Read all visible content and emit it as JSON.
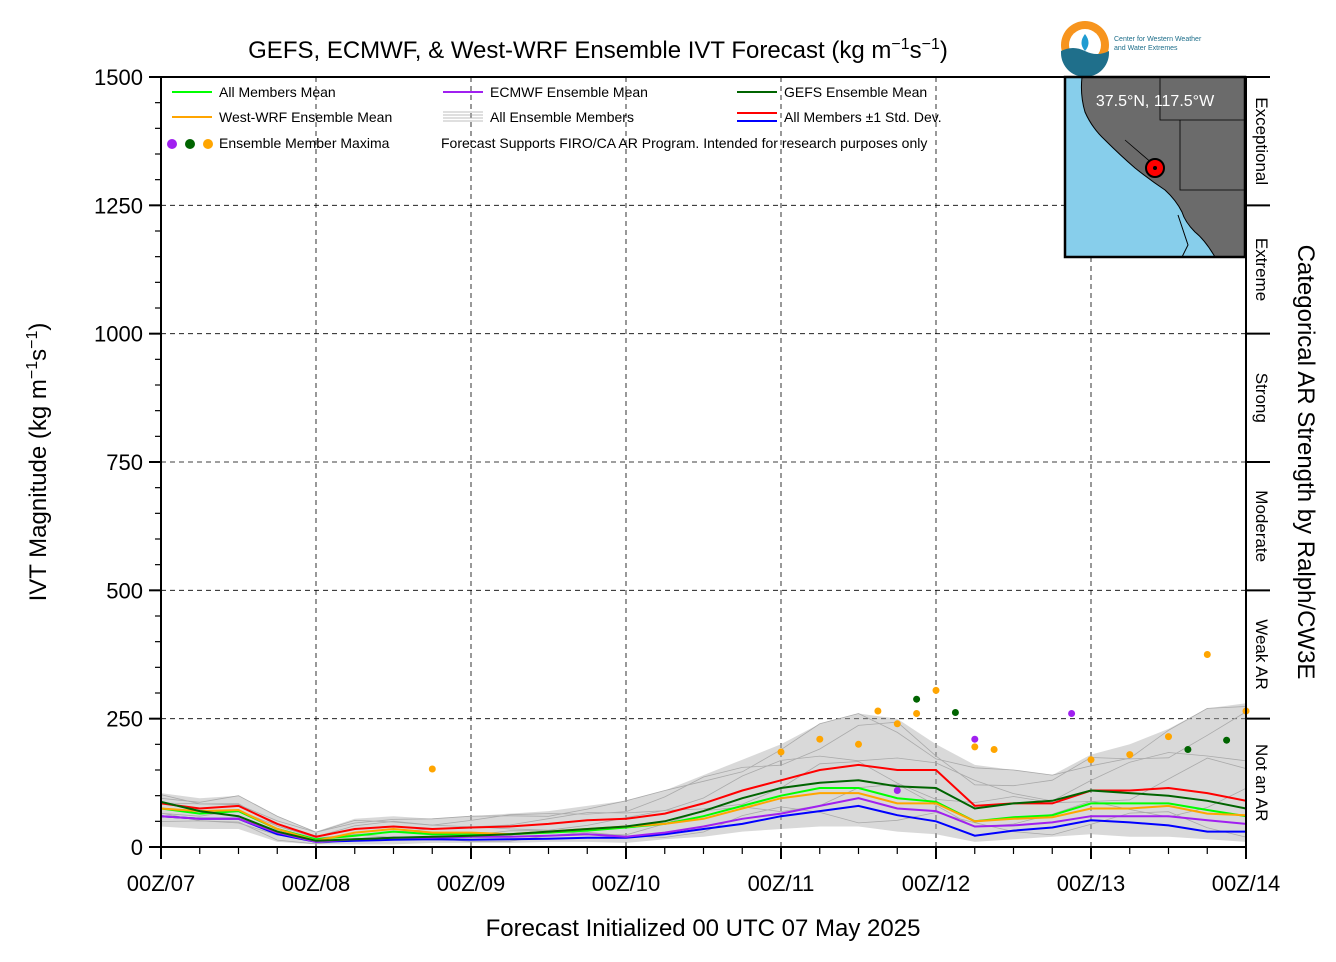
{
  "chart_data": {
    "type": "line",
    "title_main": "GEFS, ECMWF, & West-WRF Ensemble IVT Forecast (kg m",
    "title_exp1": "−1",
    "title_mid": "s",
    "title_exp2": "−1",
    "title_end": ")",
    "ylabel_main": "IVT Magnitude (kg m",
    "ylabel_exp1": "−1",
    "ylabel_mid": "s",
    "ylabel_exp2": "−1",
    "ylabel_end": ")",
    "xlabel": "Forecast Initialized 00 UTC 07 May 2025",
    "right_label": "Categorical AR Strength by Ralph/CW3E",
    "ylim": [
      0,
      1500
    ],
    "xlim": [
      0,
      168
    ],
    "yticks": [
      0,
      250,
      500,
      750,
      1000,
      1250,
      1500
    ],
    "ytick_labels": [
      "0",
      "250",
      "500",
      "750",
      "1000",
      "1250",
      "1500"
    ],
    "xticks": [
      0,
      24,
      48,
      72,
      96,
      120,
      144,
      168
    ],
    "xtick_labels": [
      "00Z/07",
      "00Z/08",
      "00Z/09",
      "00Z/10",
      "00Z/11",
      "00Z/12",
      "00Z/13",
      "00Z/14"
    ],
    "grid": true,
    "categories": [
      {
        "label": "Not an AR",
        "range": [
          0,
          250
        ]
      },
      {
        "label": "Weak AR",
        "range": [
          250,
          500
        ]
      },
      {
        "label": "Moderate",
        "range": [
          500,
          750
        ]
      },
      {
        "label": "Strong",
        "range": [
          750,
          1000
        ]
      },
      {
        "label": "Extreme",
        "range": [
          1000,
          1250
        ]
      },
      {
        "label": "Exceptional",
        "range": [
          1250,
          1500
        ]
      }
    ],
    "legend": {
      "placement": "top-left",
      "note": "Forecast Supports FIRO/CA AR Program. Intended for research purposes only",
      "entries": [
        {
          "label": "All Members Mean",
          "color": "#00ff00"
        },
        {
          "label": "ECMWF Ensemble Mean",
          "color": "#a020f0"
        },
        {
          "label": "GEFS Ensemble Mean",
          "color": "#006400"
        },
        {
          "label": "West-WRF Ensemble Mean",
          "color": "#ffa500"
        },
        {
          "label": "All Ensemble Members",
          "color": "#aaaaaa"
        },
        {
          "label": "All Members ±1 Std. Dev.",
          "color": "#ff0000",
          "color2": "#0000ff"
        },
        {
          "label": "Ensemble Member Maxima",
          "color": "#a020f0"
        }
      ]
    },
    "x": [
      0,
      6,
      12,
      18,
      24,
      30,
      36,
      42,
      48,
      54,
      60,
      66,
      72,
      78,
      84,
      90,
      96,
      102,
      108,
      114,
      120,
      126,
      132,
      138,
      144,
      150,
      156,
      162,
      168
    ],
    "series": [
      {
        "name": "All Members Mean",
        "color": "#00ff00",
        "values": [
          75,
          65,
          70,
          35,
          15,
          22,
          30,
          25,
          26,
          25,
          28,
          32,
          38,
          45,
          60,
          80,
          100,
          115,
          115,
          95,
          88,
          50,
          58,
          62,
          85,
          85,
          85,
          72,
          60
        ]
      },
      {
        "name": "ECMWF Ensemble Mean",
        "color": "#a020f0",
        "values": [
          60,
          55,
          55,
          28,
          10,
          15,
          18,
          18,
          20,
          20,
          22,
          25,
          20,
          28,
          40,
          55,
          65,
          80,
          95,
          75,
          70,
          40,
          42,
          48,
          60,
          60,
          60,
          52,
          45
        ]
      },
      {
        "name": "GEFS Ensemble Mean",
        "color": "#006400",
        "values": [
          88,
          70,
          60,
          30,
          12,
          15,
          18,
          20,
          22,
          25,
          30,
          35,
          40,
          50,
          70,
          95,
          115,
          125,
          130,
          118,
          115,
          75,
          85,
          90,
          110,
          105,
          100,
          90,
          75
        ]
      },
      {
        "name": "West-WRF Ensemble Mean",
        "color": "#ffa500",
        "values": [
          75,
          70,
          72,
          35,
          12,
          28,
          35,
          28,
          28,
          25,
          30,
          35,
          40,
          45,
          55,
          75,
          95,
          105,
          105,
          85,
          85,
          50,
          55,
          58,
          75,
          75,
          80,
          65,
          62
        ]
      },
      {
        "name": "All Members +1 Std. Dev.",
        "color": "#ff0000",
        "values": [
          85,
          75,
          80,
          45,
          20,
          35,
          40,
          35,
          38,
          40,
          45,
          52,
          55,
          65,
          85,
          110,
          130,
          150,
          160,
          150,
          150,
          80,
          85,
          85,
          110,
          110,
          115,
          105,
          90
        ]
      },
      {
        "name": "All Members −1 Std. Dev.",
        "color": "#0000ff",
        "values": [
          60,
          55,
          55,
          25,
          10,
          12,
          14,
          15,
          14,
          15,
          16,
          18,
          18,
          25,
          35,
          45,
          60,
          70,
          80,
          62,
          50,
          22,
          32,
          38,
          52,
          48,
          42,
          30,
          30
        ]
      }
    ],
    "member_envelope": {
      "color": "#aaaaaa",
      "low": [
        40,
        35,
        35,
        10,
        5,
        5,
        5,
        8,
        8,
        8,
        10,
        10,
        8,
        15,
        20,
        30,
        35,
        40,
        40,
        30,
        25,
        10,
        15,
        20,
        25,
        20,
        20,
        15,
        10
      ],
      "high": [
        105,
        95,
        100,
        60,
        30,
        55,
        60,
        55,
        60,
        65,
        70,
        80,
        90,
        110,
        140,
        170,
        200,
        240,
        260,
        250,
        200,
        160,
        150,
        140,
        180,
        200,
        230,
        270,
        280
      ]
    },
    "maxima": [
      {
        "x": 42,
        "y": 152,
        "color": "#ffa500"
      },
      {
        "x": 96,
        "y": 185,
        "color": "#ffa500"
      },
      {
        "x": 102,
        "y": 210,
        "color": "#ffa500"
      },
      {
        "x": 108,
        "y": 200,
        "color": "#ffa500"
      },
      {
        "x": 111,
        "y": 265,
        "color": "#ffa500"
      },
      {
        "x": 114,
        "y": 240,
        "color": "#ffa500"
      },
      {
        "x": 117,
        "y": 260,
        "color": "#ffa500"
      },
      {
        "x": 120,
        "y": 305,
        "color": "#ffa500"
      },
      {
        "x": 126,
        "y": 195,
        "color": "#ffa500"
      },
      {
        "x": 129,
        "y": 190,
        "color": "#ffa500"
      },
      {
        "x": 144,
        "y": 170,
        "color": "#ffa500"
      },
      {
        "x": 150,
        "y": 180,
        "color": "#ffa500"
      },
      {
        "x": 156,
        "y": 215,
        "color": "#ffa500"
      },
      {
        "x": 162,
        "y": 375,
        "color": "#ffa500"
      },
      {
        "x": 168,
        "y": 265,
        "color": "#ffa500"
      },
      {
        "x": 117,
        "y": 288,
        "color": "#006400"
      },
      {
        "x": 123,
        "y": 262,
        "color": "#006400"
      },
      {
        "x": 159,
        "y": 190,
        "color": "#006400"
      },
      {
        "x": 165,
        "y": 208,
        "color": "#006400"
      },
      {
        "x": 141,
        "y": 260,
        "color": "#a020f0"
      },
      {
        "x": 126,
        "y": 210,
        "color": "#a020f0"
      },
      {
        "x": 114,
        "y": 110,
        "color": "#a020f0"
      }
    ],
    "map_inset": {
      "label": "37.5°N, 117.5°W"
    },
    "logo": {
      "line1": "Center for Western Weather",
      "line2": "and Water Extremes"
    }
  }
}
